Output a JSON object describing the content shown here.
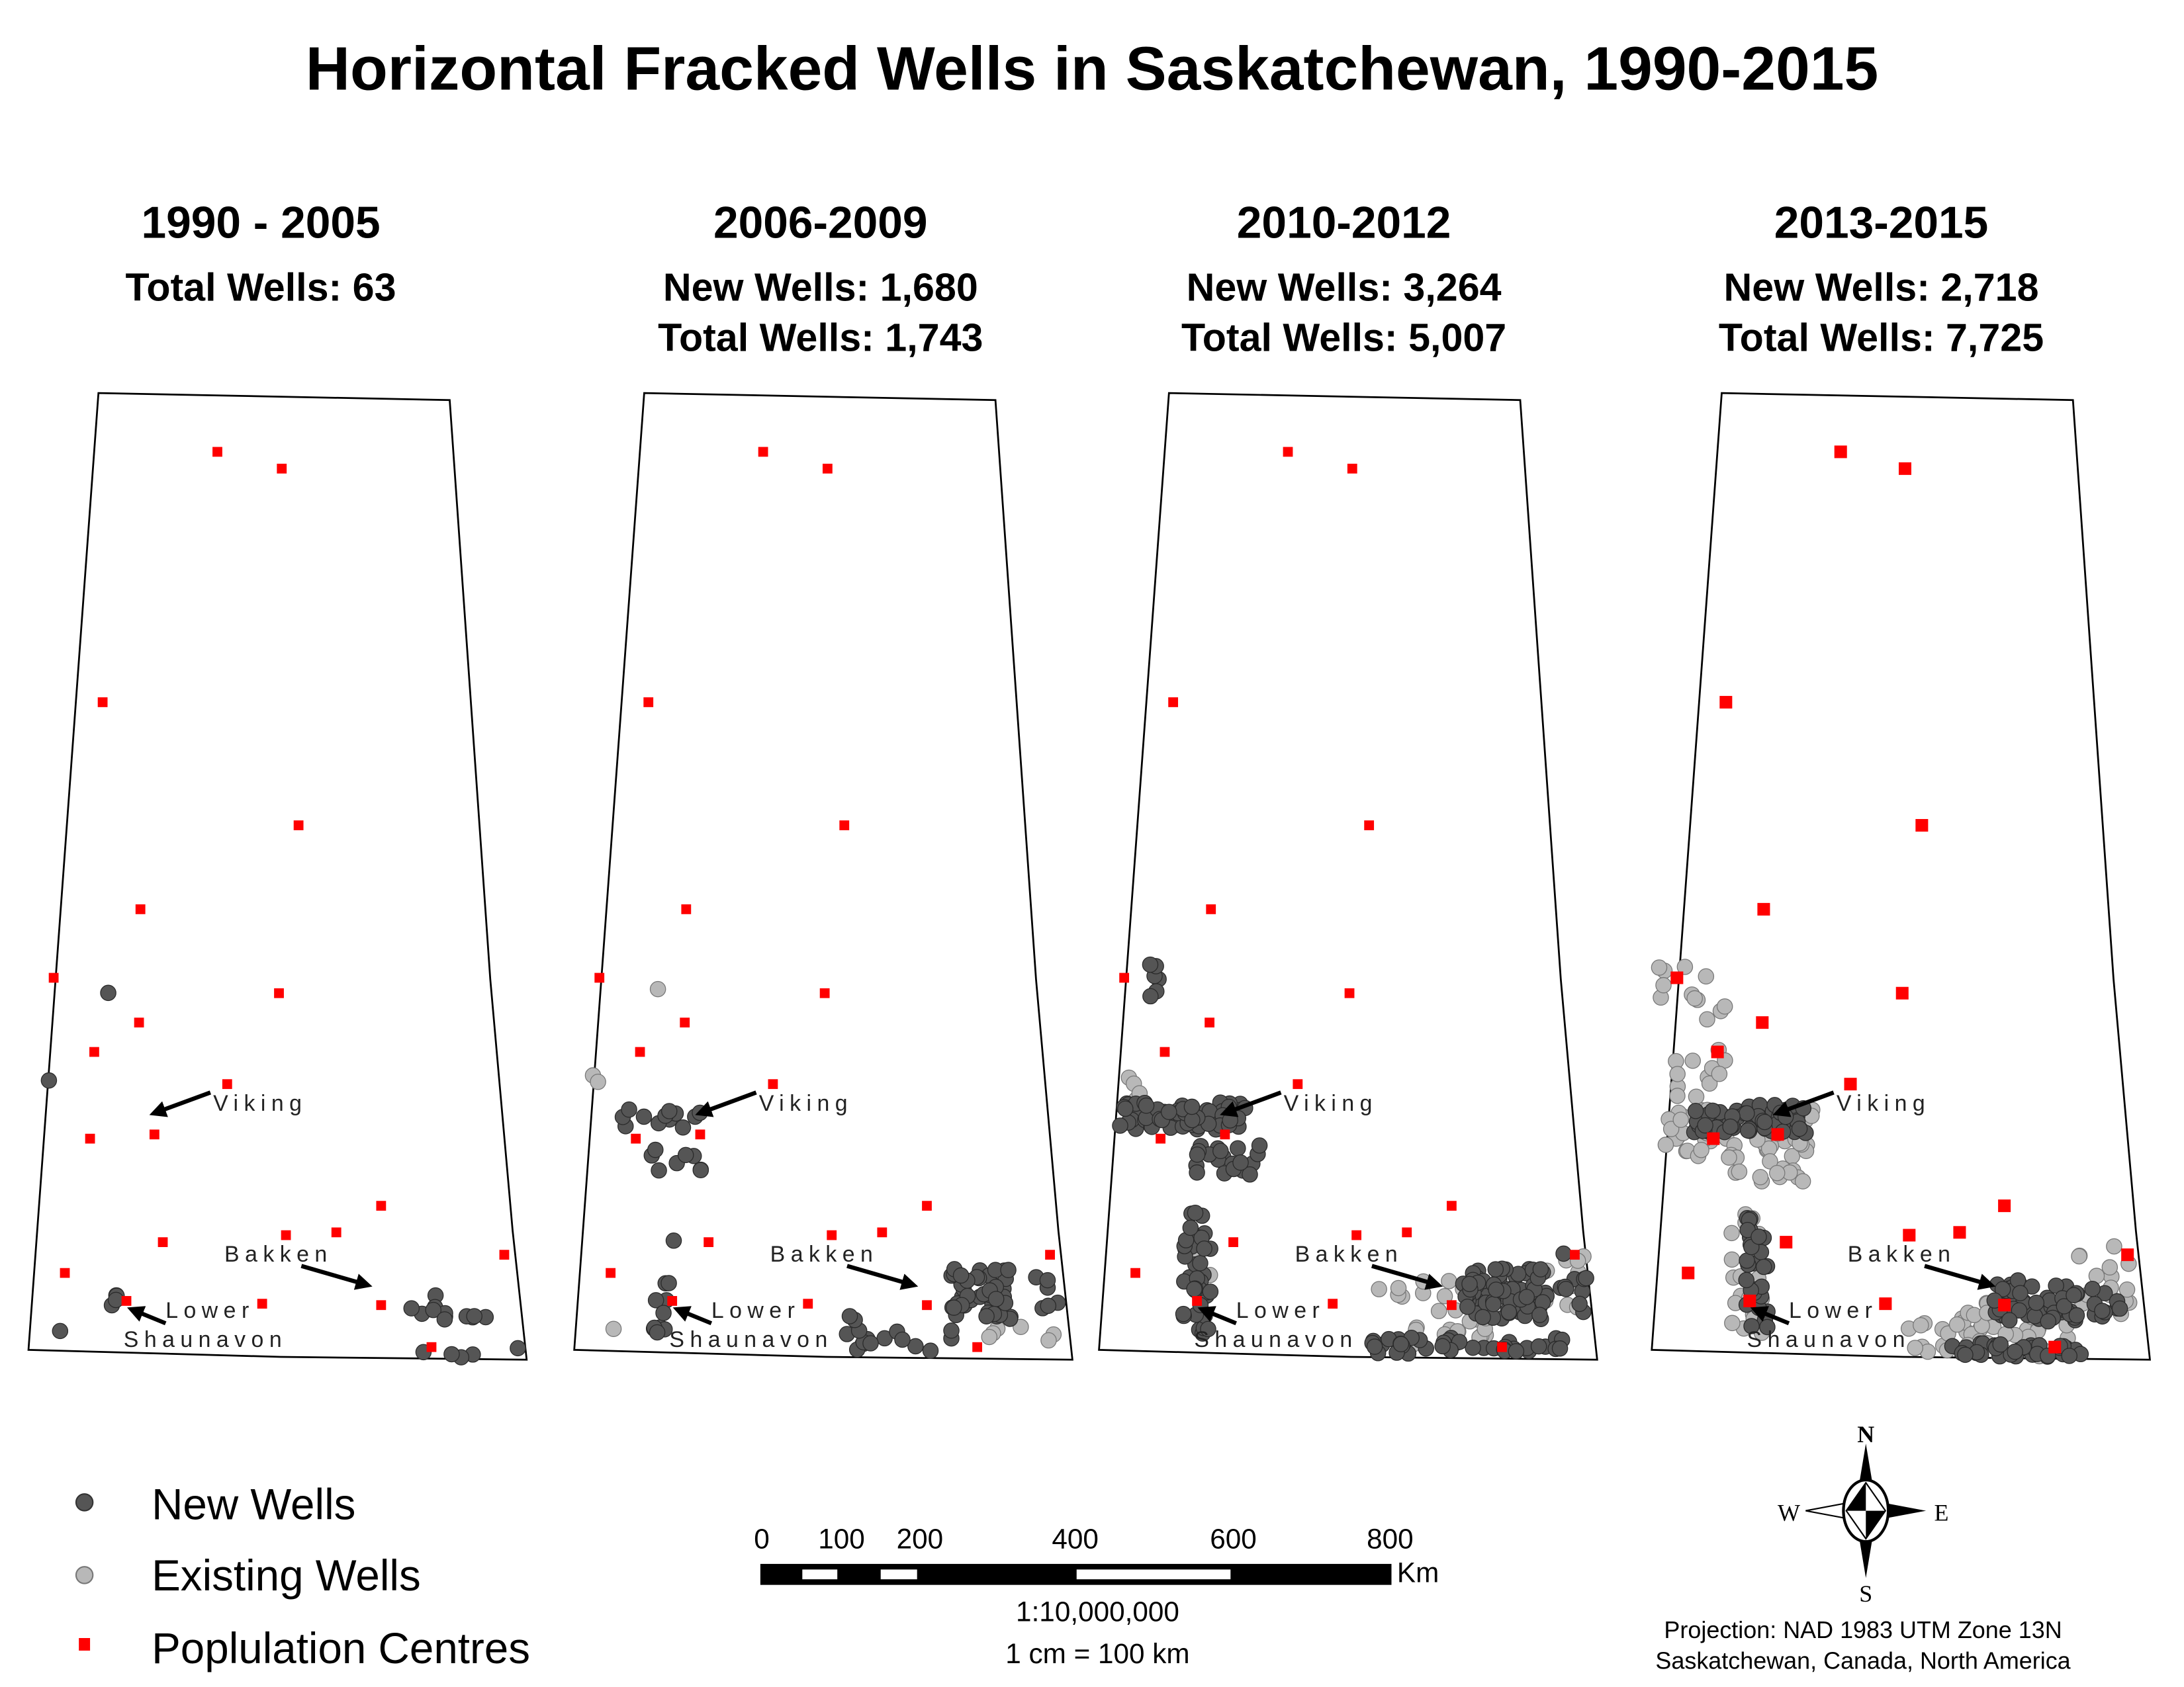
{
  "title": "Horizontal Fracked Wells in Saskatchewan, 1990-2015",
  "panels": [
    {
      "period": "1990 - 2005",
      "line1": "Total Wells: 63",
      "line2": ""
    },
    {
      "period": "2006-2009",
      "line1": "New Wells: 1,680",
      "line2": "Total Wells: 1,743"
    },
    {
      "period": "2010-2012",
      "line1": "New Wells: 3,264",
      "line2": "Total Wells: 5,007"
    },
    {
      "period": "2013-2015",
      "line1": "New Wells: 2,718",
      "line2": "Total Wells: 7,725"
    }
  ],
  "map_labels": {
    "viking": "Viking",
    "bakken": "Bakken",
    "lower": "Lower",
    "shaunavon": "Shaunavon"
  },
  "legend": {
    "new_wells": "New Wells",
    "existing_wells": "Existing Wells",
    "population_centres": "Poplulation Centres"
  },
  "scale_bar": {
    "ticks": [
      "0",
      "100",
      "200",
      "400",
      "600",
      "800"
    ],
    "unit": "Km",
    "ratio": "1:10,000,000",
    "equivalence": "1 cm = 100 km"
  },
  "compass": {
    "n": "N",
    "s": "S",
    "e": "E",
    "w": "W"
  },
  "projection": "Projection: NAD 1983 UTM Zone 13N",
  "location": "Saskatchewan, Canada, North America",
  "colors": {
    "new_wells": "#555555",
    "existing_wells": "#b8b8b8",
    "population_centres": "#ff0000",
    "outline": "#000000"
  }
}
